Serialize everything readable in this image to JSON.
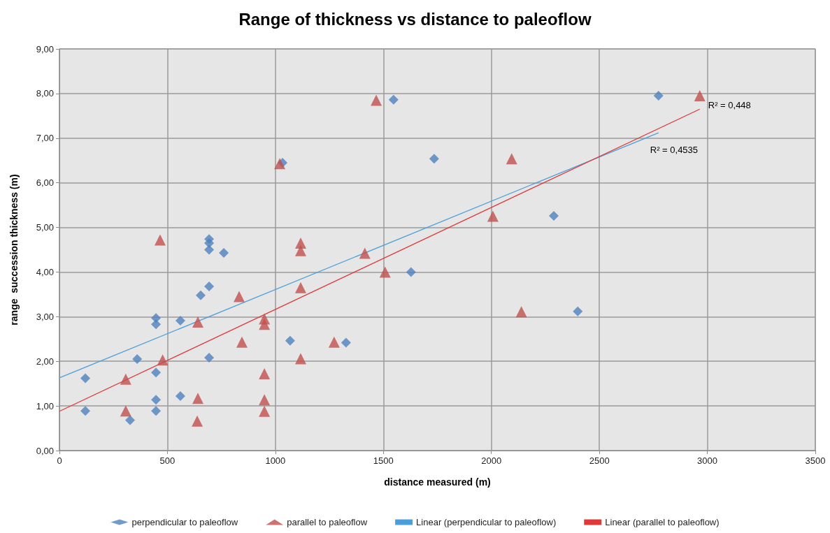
{
  "chart_data": {
    "type": "scatter",
    "title": "Range of thickness vs distance to paleoflow",
    "xlabel": "distance measured (m)",
    "ylabel": "range  succession thickness (m)",
    "xlim": [
      0,
      3500
    ],
    "xticks": [
      0,
      500,
      1000,
      1500,
      2000,
      2500,
      3000,
      3500
    ],
    "ylim": [
      0,
      9
    ],
    "yticks": [
      {
        "value": 0,
        "label": "0,00"
      },
      {
        "value": 1,
        "label": "1,00"
      },
      {
        "value": 2,
        "label": "2,00"
      },
      {
        "value": 3,
        "label": "3,00"
      },
      {
        "value": 4,
        "label": "4,00"
      },
      {
        "value": 5,
        "label": "5,00"
      },
      {
        "value": 6,
        "label": "6,00"
      },
      {
        "value": 7,
        "label": "7,00"
      },
      {
        "value": 8,
        "label": "8,00"
      },
      {
        "value": 9,
        "label": "9,00"
      }
    ],
    "grid": true,
    "legend": "bottom",
    "series": [
      {
        "name": "perpendicular to paleoflow",
        "type": "scatter",
        "marker": "diamond",
        "color": "#4f81bd",
        "x": [
          120,
          120,
          327,
          360,
          447,
          447,
          447,
          447,
          447,
          560,
          560,
          654,
          693,
          693,
          693,
          693,
          693,
          761,
          1033,
          1068,
          1327,
          1547,
          1628,
          1735,
          2289,
          2400,
          2774
        ],
        "values": [
          0.89,
          1.62,
          0.68,
          2.05,
          1.75,
          1.14,
          0.89,
          2.97,
          2.83,
          1.22,
          2.91,
          3.48,
          3.68,
          2.08,
          4.74,
          4.65,
          4.5,
          4.43,
          6.45,
          2.46,
          2.42,
          7.86,
          4.0,
          6.54,
          5.26,
          3.12,
          7.95
        ]
      },
      {
        "name": "parallel to paleoflow",
        "type": "scatter",
        "marker": "triangle",
        "color": "#c0504d",
        "x": [
          307,
          307,
          466,
          478,
          641,
          641,
          638,
          832,
          845,
          949,
          949,
          949,
          949,
          949,
          1020,
          1117,
          1117,
          1117,
          1117,
          1272,
          1414,
          1508,
          1467,
          2007,
          2094,
          2139,
          2965
        ],
        "values": [
          1.6,
          0.89,
          4.72,
          2.03,
          2.88,
          1.17,
          0.66,
          3.45,
          2.43,
          2.95,
          2.83,
          1.72,
          1.14,
          0.88,
          6.43,
          4.65,
          4.48,
          3.65,
          2.06,
          2.43,
          4.42,
          4.0,
          7.85,
          5.25,
          6.54,
          3.11,
          7.95
        ]
      },
      {
        "name": "Linear (perpendicular to paleoflow)",
        "type": "line",
        "marker": "none",
        "color": "#4a9fdb",
        "x": [
          0,
          2774
        ],
        "values": [
          1.63,
          7.12
        ]
      },
      {
        "name": "Linear (parallel to paleoflow)",
        "type": "line",
        "marker": "none",
        "color": "#e0393a",
        "x": [
          0,
          2965
        ],
        "values": [
          0.88,
          7.65
        ]
      }
    ],
    "annotations": [
      {
        "text": "R² = 0,448",
        "x": 2965,
        "y": 7.65
      },
      {
        "text": "R² = 0,4535",
        "x": 2774,
        "y": 7.12
      }
    ]
  }
}
